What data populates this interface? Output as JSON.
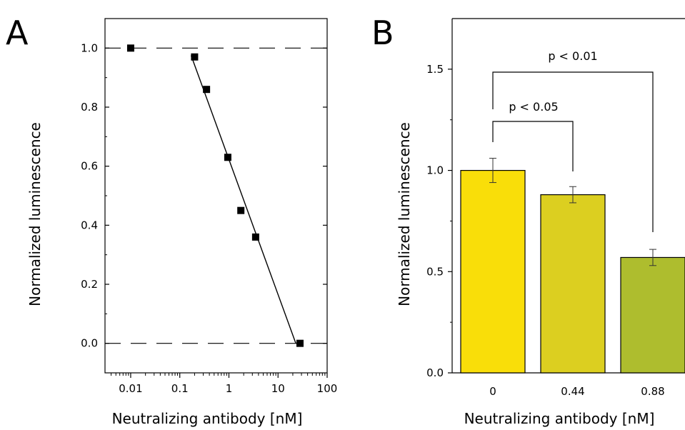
{
  "chart_data": [
    {
      "panel": "A",
      "type": "scatter",
      "xlabel": "Neutralizing antibody [nM]",
      "ylabel": "Normalized luminescence",
      "x_scale": "log",
      "xlim": [
        0.003,
        100
      ],
      "ylim": [
        -0.1,
        1.1
      ],
      "x_ticks": [
        0.01,
        0.1,
        1,
        10,
        100
      ],
      "x_tick_labels": [
        "0.01",
        "0.1",
        "1",
        "10",
        "100"
      ],
      "y_ticks": [
        0.0,
        0.2,
        0.4,
        0.6,
        0.8,
        1.0
      ],
      "y_tick_labels": [
        "0.0",
        "0.2",
        "0.4",
        "0.6",
        "0.8",
        "1.0"
      ],
      "grid": false,
      "reference_lines": [
        1.0,
        0.0
      ],
      "points": [
        {
          "x": 0.01,
          "y": 1.0
        },
        {
          "x": 0.2,
          "y": 0.97
        },
        {
          "x": 0.35,
          "y": 0.86
        },
        {
          "x": 0.95,
          "y": 0.63
        },
        {
          "x": 1.75,
          "y": 0.45
        },
        {
          "x": 3.5,
          "y": 0.36
        },
        {
          "x": 28,
          "y": 0.0
        }
      ],
      "fit_line": [
        {
          "x": 0.17,
          "y": 0.975
        },
        {
          "x": 23,
          "y": 0.0
        }
      ]
    },
    {
      "panel": "B",
      "type": "bar",
      "xlabel": "Neutralizing antibody [nM]",
      "ylabel": "Normalized luminescence",
      "categories": [
        "0",
        "0.44",
        "0.88"
      ],
      "values": [
        1.0,
        0.88,
        0.57
      ],
      "errors": [
        0.06,
        0.04,
        0.04
      ],
      "colors": [
        "#f9de09",
        "#dccf20",
        "#aebd2e"
      ],
      "ylim": [
        0,
        1.75
      ],
      "y_ticks": [
        0.0,
        0.5,
        1.0,
        1.5
      ],
      "y_tick_labels": [
        "0.0",
        "0.5",
        "1.0",
        "1.5"
      ],
      "grid": false,
      "significance": [
        {
          "from": 0,
          "to": 1,
          "label": "p < 0.05"
        },
        {
          "from": 0,
          "to": 2,
          "label": "p < 0.01"
        }
      ]
    }
  ],
  "panel_labels": [
    "A",
    "B"
  ]
}
